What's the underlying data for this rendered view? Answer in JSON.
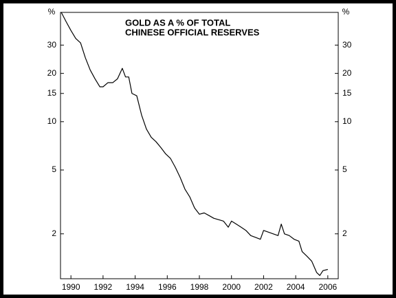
{
  "chart_data": {
    "type": "line",
    "title": [
      "GOLD AS A % OF TOTAL",
      "CHINESE OFFICIAL RESERVES"
    ],
    "y_label": "%",
    "y2_label": "%",
    "log_scale": true,
    "grid": false,
    "x": [
      1989.4,
      1989.7,
      1990.0,
      1990.3,
      1990.6,
      1990.9,
      1991.2,
      1991.5,
      1991.8,
      1992.0,
      1992.3,
      1992.6,
      1992.9,
      1993.2,
      1993.4,
      1993.6,
      1993.8,
      1994.1,
      1994.4,
      1994.7,
      1995.0,
      1995.3,
      1995.6,
      1995.9,
      1996.2,
      1996.5,
      1996.8,
      1997.1,
      1997.4,
      1997.7,
      1998.0,
      1998.3,
      1998.6,
      1998.9,
      1999.2,
      1999.5,
      1999.8,
      2000.0,
      2000.3,
      2000.6,
      2000.9,
      2001.2,
      2001.5,
      2001.8,
      2002.0,
      2002.3,
      2002.6,
      2002.9,
      2003.1,
      2003.3,
      2003.6,
      2003.9,
      2004.2,
      2004.4,
      2004.7,
      2005.0,
      2005.3,
      2005.5,
      2005.7,
      2006.0
    ],
    "series": [
      {
        "color": "#000000",
        "values": [
          48,
          42,
          37,
          33,
          31,
          25,
          21,
          18.5,
          16.5,
          16.5,
          17.5,
          17.5,
          18.5,
          21.5,
          19,
          19,
          15,
          14.5,
          11,
          9,
          8,
          7.5,
          6.9,
          6.3,
          5.9,
          5.2,
          4.5,
          3.8,
          3.4,
          2.9,
          2.65,
          2.7,
          2.6,
          2.5,
          2.45,
          2.4,
          2.2,
          2.4,
          2.3,
          2.2,
          2.1,
          1.95,
          1.9,
          1.85,
          2.1,
          2.05,
          2.0,
          1.95,
          2.3,
          2.0,
          1.95,
          1.85,
          1.8,
          1.55,
          1.45,
          1.35,
          1.15,
          1.1,
          1.18,
          1.2
        ]
      }
    ],
    "xlim": [
      1989.35,
      2006.65
    ],
    "xticks": [
      1990,
      1992,
      1994,
      1996,
      1998,
      2000,
      2002,
      2004,
      2006
    ],
    "ylim": [
      1.05,
      48
    ],
    "yticks": [
      2,
      5,
      10,
      15,
      20,
      30
    ],
    "y2lim": [
      1.05,
      48
    ],
    "y2ticks": [
      2,
      5,
      10,
      15,
      20,
      30
    ]
  }
}
